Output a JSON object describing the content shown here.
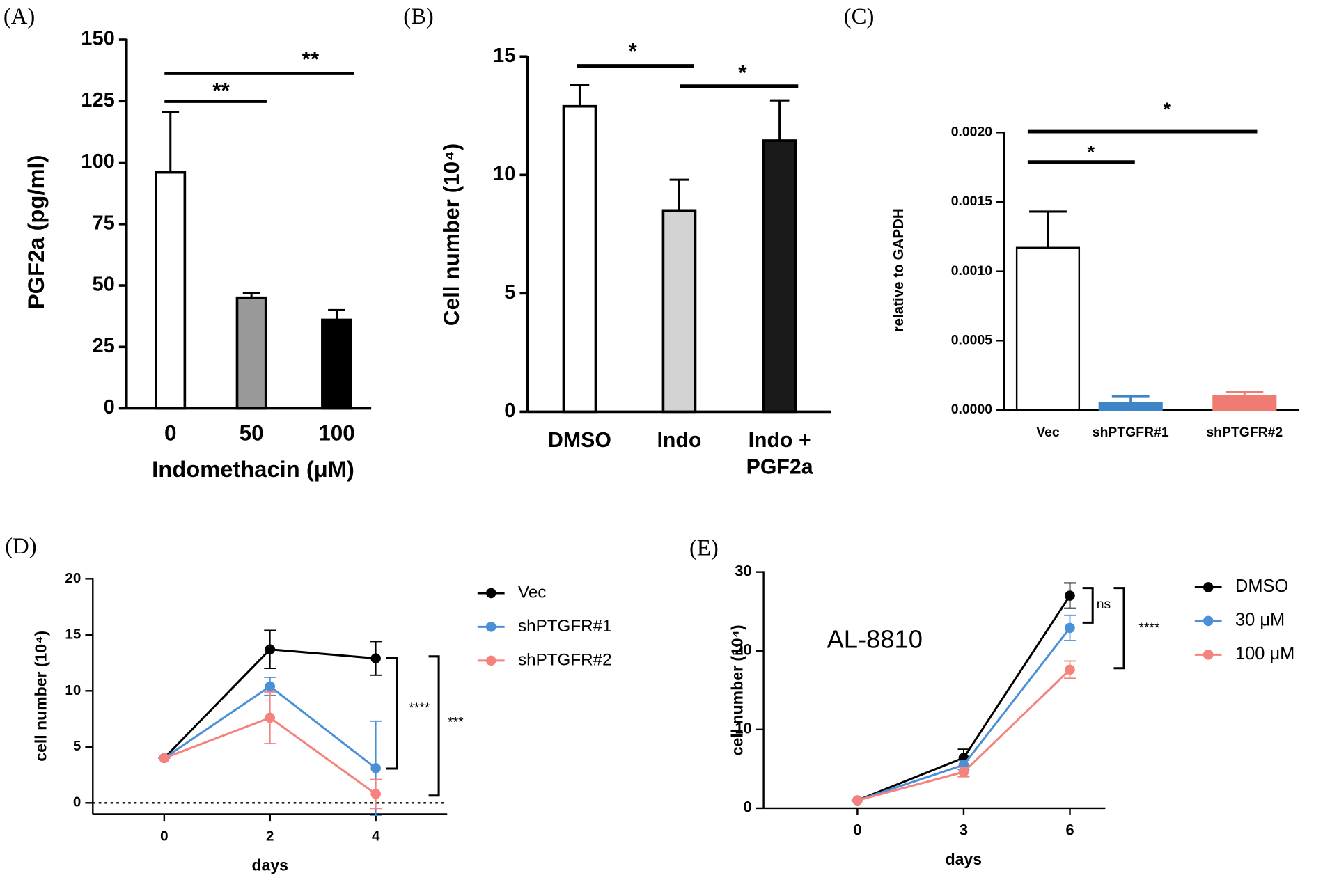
{
  "chart_data": [
    {
      "type": "bar",
      "panel": "(A)",
      "ylabel": "PGF2a (pg/ml)",
      "xlabel": "Indomethacin (μM)",
      "categories": [
        "0",
        "50",
        "100"
      ],
      "values": [
        96,
        45,
        36
      ],
      "errors": [
        24.5,
        2,
        4
      ],
      "colors": [
        "#ffffff",
        "#999999",
        "#000000"
      ],
      "bar_edge": "#000000",
      "ylim": [
        0,
        150
      ],
      "yticks": [
        0,
        25,
        50,
        75,
        100,
        125,
        150
      ],
      "annotations": [
        "**",
        "**"
      ]
    },
    {
      "type": "bar",
      "panel": "(B)",
      "ylabel": "Cell number (10⁴)",
      "categories": [
        "DMSO",
        "Indo",
        "Indo + PGF2a"
      ],
      "values": [
        12.9,
        8.5,
        11.45
      ],
      "errors": [
        0.9,
        1.3,
        1.7
      ],
      "colors": [
        "#ffffff",
        "#d3d3d3",
        "#1a1a1a"
      ],
      "bar_edge": "#000000",
      "ylim": [
        0,
        15
      ],
      "yticks": [
        0,
        5,
        10,
        15
      ],
      "annotations": [
        "*",
        "*"
      ]
    },
    {
      "type": "bar",
      "panel": "(C)",
      "ylabel": "relative to GAPDH",
      "categories": [
        "Vec",
        "shPTGFR#1",
        "shPTGFR#2"
      ],
      "values": [
        0.00117,
        5e-05,
        0.0001
      ],
      "errors": [
        0.00026,
        5e-05,
        3e-05
      ],
      "colors": [
        "#ffffff",
        "#3d85c6",
        "#f07b72"
      ],
      "ylim": [
        0,
        0.002
      ],
      "yticks": [
        {
          "value": 0,
          "label": "0.0000"
        },
        {
          "value": 0.0005,
          "label": "0.0005"
        },
        {
          "value": 0.001,
          "label": "0.0010"
        },
        {
          "value": 0.0015,
          "label": "0.0015"
        },
        {
          "value": 0.002,
          "label": "0.0020"
        }
      ],
      "annotations": [
        "*",
        "*"
      ]
    },
    {
      "type": "line",
      "panel": "(D)",
      "ylabel": "cell number (10⁴)",
      "xlabel": "days",
      "x": [
        0,
        2,
        4
      ],
      "series": [
        {
          "name": "Vec",
          "color": "#000000",
          "values": [
            4,
            13.7,
            12.9
          ],
          "errors": [
            0,
            1.7,
            1.5
          ]
        },
        {
          "name": "shPTGFR#1",
          "color": "#4a90d9",
          "values": [
            4,
            10.4,
            3.1
          ],
          "errors": [
            0,
            0.8,
            4.2
          ]
        },
        {
          "name": "shPTGFR#2",
          "color": "#f4837d",
          "values": [
            4,
            7.6,
            0.8
          ],
          "errors": [
            0,
            2.3,
            1.3
          ]
        }
      ],
      "xlim": [
        -1.35,
        5.35
      ],
      "xticks": [
        0,
        2,
        4
      ],
      "ylim": [
        -1,
        20
      ],
      "yticks": [
        0,
        5,
        10,
        15,
        20
      ],
      "zero_line": "dotted",
      "legend": "right",
      "annotations": [
        "****",
        "***"
      ]
    },
    {
      "type": "line",
      "panel": "(E)",
      "ylabel": "cell number (10⁴)",
      "xlabel": "days",
      "x": [
        0,
        3,
        6
      ],
      "series": [
        {
          "name": "DMSO",
          "color": "#000000",
          "values": [
            1,
            6.4,
            27
          ],
          "errors": [
            0,
            1.1,
            1.6
          ]
        },
        {
          "name": "30 μM",
          "color": "#4a90d9",
          "values": [
            1,
            5.5,
            22.9
          ],
          "errors": [
            0,
            0.6,
            1.6
          ]
        },
        {
          "name": "100 μM",
          "color": "#f4837d",
          "values": [
            1,
            4.6,
            17.6
          ],
          "errors": [
            0,
            0.6,
            1.1
          ]
        }
      ],
      "xlim": [
        -2.65,
        7
      ],
      "xticks": [
        0,
        3,
        6
      ],
      "ylim": [
        0,
        30
      ],
      "yticks": [
        0,
        10,
        20,
        30
      ],
      "legend": "right",
      "note": "AL-8810",
      "annotations": [
        "ns",
        "****"
      ]
    }
  ]
}
